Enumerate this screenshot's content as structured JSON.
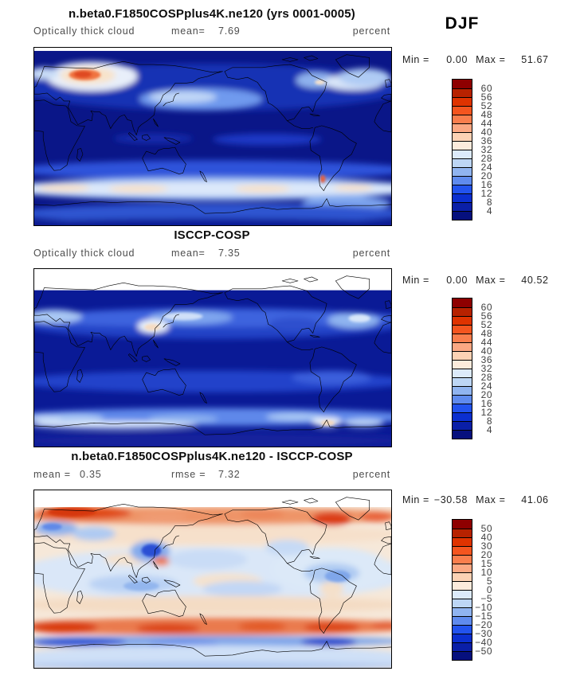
{
  "header": {
    "season": "DJF"
  },
  "panels": [
    {
      "title": "n.beta0.F1850COSPplus4K.ne120 (yrs 0001-0005)",
      "variable": "Optically thick cloud",
      "mean_label": "mean=",
      "mean": "7.69",
      "units": "percent",
      "min_label": "Min =",
      "min": "0.00",
      "max_label": "Max =",
      "max": "51.67"
    },
    {
      "title": "ISCCP-COSP",
      "variable": "Optically thick cloud",
      "mean_label": "mean=",
      "mean": "7.35",
      "units": "percent",
      "min_label": "Min =",
      "min": "0.00",
      "max_label": "Max =",
      "max": "40.52"
    },
    {
      "title": "n.beta0.F1850COSPplus4K.ne120 - ISCCP-COSP",
      "mean_label": "mean =",
      "mean": "0.35",
      "rmse_label": "rmse =",
      "rmse": "7.32",
      "units": "percent",
      "min_label": "Min =",
      "min": "−30.58",
      "max_label": "Max =",
      "max": "41.06"
    }
  ],
  "colorbars": [
    {
      "ticks": [
        "60",
        "56",
        "52",
        "48",
        "44",
        "40",
        "36",
        "32",
        "28",
        "24",
        "20",
        "16",
        "12",
        "8",
        "4"
      ],
      "colors": [
        "#8E0000",
        "#B72200",
        "#DF3300",
        "#F4551F",
        "#F97E4D",
        "#FBA883",
        "#FCD2B4",
        "#FCEBDC",
        "#DCEAFA",
        "#BDD6F5",
        "#90B4F0",
        "#5F8BEE",
        "#2253EE",
        "#0B2FD0",
        "#0A1FA8",
        "#06107E"
      ]
    },
    {
      "ticks": [
        "60",
        "56",
        "52",
        "48",
        "44",
        "40",
        "36",
        "32",
        "28",
        "24",
        "20",
        "16",
        "12",
        "8",
        "4"
      ],
      "colors": [
        "#8E0000",
        "#B72200",
        "#DF3300",
        "#F4551F",
        "#F97E4D",
        "#FBA883",
        "#FCD2B4",
        "#FCEBDC",
        "#DCEAFA",
        "#BDD6F5",
        "#90B4F0",
        "#5F8BEE",
        "#2253EE",
        "#0B2FD0",
        "#0A1FA8",
        "#06107E"
      ]
    },
    {
      "ticks": [
        "50",
        "40",
        "30",
        "20",
        "15",
        "10",
        "5",
        "0",
        "−5",
        "−10",
        "−15",
        "−20",
        "−30",
        "−40",
        "−50"
      ],
      "colors": [
        "#8E0000",
        "#B72200",
        "#DF3300",
        "#F4551F",
        "#F97E4D",
        "#FBA883",
        "#FCD2B4",
        "#FCEBDC",
        "#DCEAFA",
        "#BDD6F5",
        "#90B4F0",
        "#5F8BEE",
        "#2253EE",
        "#0B2FD0",
        "#0A1FA8",
        "#06107E"
      ]
    }
  ],
  "chart_data": [
    {
      "type": "heatmap",
      "subtype": "filled-contour world map (equirectangular, lon 0-360E)",
      "title": "n.beta0.F1850COSPplus4K.ne120 (yrs 0001-0005)",
      "variable": "Optically thick cloud",
      "season": "DJF",
      "units": "percent",
      "mean": 7.69,
      "min": 0.0,
      "max": 51.67,
      "levels": [
        4,
        8,
        12,
        16,
        20,
        24,
        28,
        32,
        36,
        40,
        44,
        48,
        52,
        56,
        60
      ],
      "palette_low_to_high": [
        "#06107E",
        "#0A1FA8",
        "#0B2FD0",
        "#2253EE",
        "#5F8BEE",
        "#90B4F0",
        "#BDD6F5",
        "#DCEAFA",
        "#FCEBDC",
        "#FCD2B4",
        "#FBA883",
        "#F97E4D",
        "#F4551F",
        "#DF3300",
        "#B72200",
        "#8E0000"
      ],
      "legend_position": "right"
    },
    {
      "type": "heatmap",
      "subtype": "filled-contour world map (equirectangular, lon 0-360E)",
      "title": "ISCCP-COSP",
      "variable": "Optically thick cloud",
      "season": "DJF",
      "units": "percent",
      "mean": 7.35,
      "min": 0.0,
      "max": 40.52,
      "levels": [
        4,
        8,
        12,
        16,
        20,
        24,
        28,
        32,
        36,
        40,
        44,
        48,
        52,
        56,
        60
      ],
      "palette_low_to_high": [
        "#06107E",
        "#0A1FA8",
        "#0B2FD0",
        "#2253EE",
        "#5F8BEE",
        "#90B4F0",
        "#BDD6F5",
        "#DCEAFA",
        "#FCEBDC",
        "#FCD2B4",
        "#FBA883",
        "#F97E4D",
        "#F4551F",
        "#DF3300",
        "#B72200",
        "#8E0000"
      ],
      "legend_position": "right"
    },
    {
      "type": "heatmap",
      "subtype": "difference map (model minus observations)",
      "title": "n.beta0.F1850COSPplus4K.ne120 - ISCCP-COSP",
      "season": "DJF",
      "units": "percent",
      "mean": 0.35,
      "rmse": 7.32,
      "min": -30.58,
      "max": 41.06,
      "levels": [
        -50,
        -40,
        -30,
        -20,
        -15,
        -10,
        -5,
        0,
        5,
        10,
        15,
        20,
        30,
        40,
        50
      ],
      "palette_low_to_high": [
        "#06107E",
        "#0A1FA8",
        "#0B2FD0",
        "#2253EE",
        "#5F8BEE",
        "#90B4F0",
        "#BDD6F5",
        "#DCEAFA",
        "#FCEBDC",
        "#FCD2B4",
        "#FBA883",
        "#F97E4D",
        "#F4551F",
        "#DF3300",
        "#B72200",
        "#8E0000"
      ],
      "legend_position": "right"
    }
  ]
}
